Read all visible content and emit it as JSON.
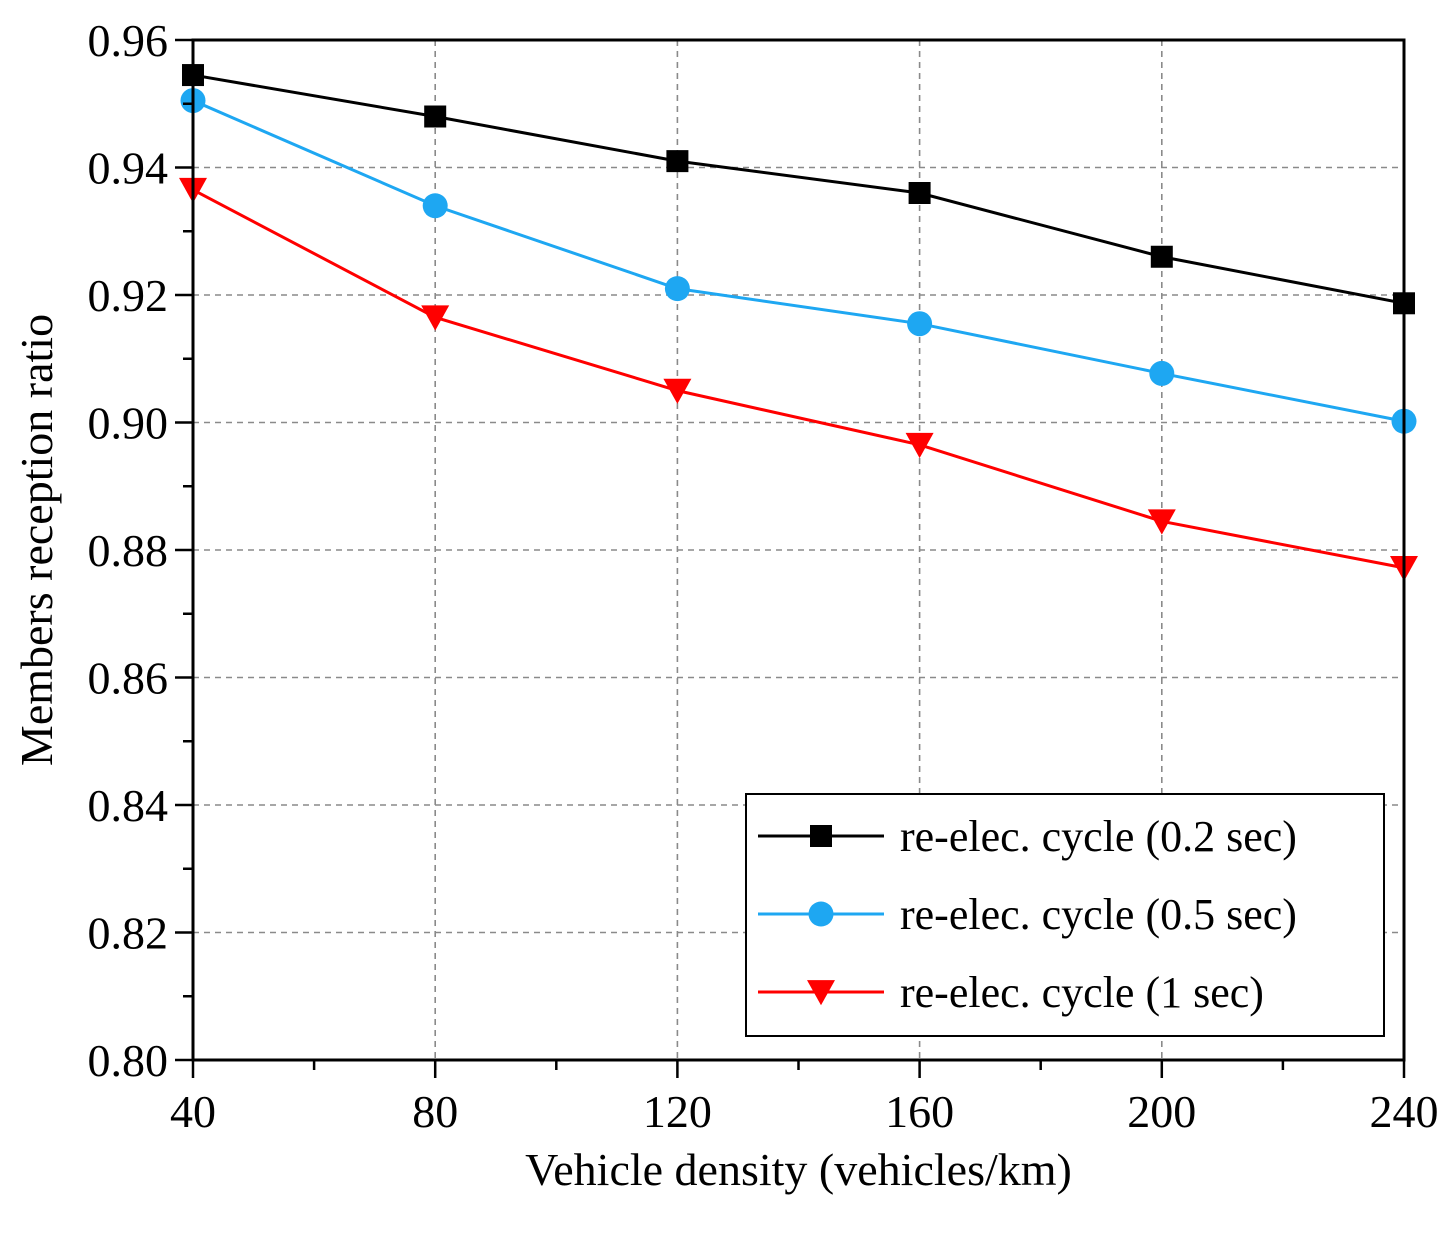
{
  "chart_data": {
    "type": "line",
    "xlabel": "Vehicle density (vehicles/km)",
    "ylabel": "Members reception ratio",
    "x": [
      40,
      80,
      120,
      160,
      200,
      240
    ],
    "xlim": [
      40,
      240
    ],
    "ylim": [
      0.8,
      0.96
    ],
    "x_ticks": [
      "40",
      "80",
      "120",
      "160",
      "200",
      "240"
    ],
    "y_ticks": [
      "0.80",
      "0.82",
      "0.84",
      "0.86",
      "0.88",
      "0.90",
      "0.92",
      "0.94",
      "0.96"
    ],
    "grid": true,
    "legend_position": "bottom-right",
    "series": [
      {
        "name": "re-elec. cycle (0.2 sec)",
        "color": "#000000",
        "marker": "square",
        "values": [
          0.9545,
          0.948,
          0.941,
          0.936,
          0.926,
          0.9187
        ]
      },
      {
        "name": "re-elec. cycle (0.5 sec)",
        "color": "#1ea7f2",
        "marker": "circle",
        "values": [
          0.9505,
          0.934,
          0.921,
          0.9155,
          0.9077,
          0.9002
        ]
      },
      {
        "name": "re-elec. cycle (1 sec)",
        "color": "#ff0000",
        "marker": "triangle-down",
        "values": [
          0.9365,
          0.9165,
          0.905,
          0.8965,
          0.8845,
          0.8772
        ]
      }
    ]
  }
}
